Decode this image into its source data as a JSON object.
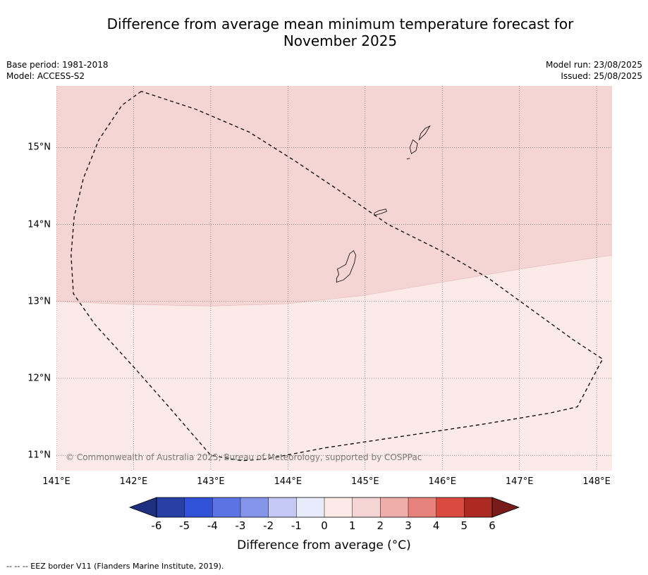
{
  "title_line1": "Difference from average mean minimum temperature forecast for",
  "title_line2": "November 2025",
  "meta_left": {
    "base_period": "Base period: 1981-2018",
    "model": "Model: ACCESS-S2"
  },
  "meta_right": {
    "model_run": "Model run: 23/08/2025",
    "issued": "Issued: 25/08/2025"
  },
  "map": {
    "lon_range": [
      141.0,
      148.2
    ],
    "lat_range": [
      10.8,
      15.8
    ],
    "lat_labels": [
      {
        "value": 15,
        "text": "15°N"
      },
      {
        "value": 14,
        "text": "14°N"
      },
      {
        "value": 13,
        "text": "13°N"
      },
      {
        "value": 12,
        "text": "12°N"
      },
      {
        "value": 11,
        "text": "11°N"
      }
    ],
    "lon_labels": [
      {
        "value": 141,
        "text": "141°E"
      },
      {
        "value": 142,
        "text": "142°E"
      },
      {
        "value": 143,
        "text": "143°E"
      },
      {
        "value": 144,
        "text": "144°E"
      },
      {
        "value": 145,
        "text": "145°E"
      },
      {
        "value": 146,
        "text": "146°E"
      },
      {
        "value": 147,
        "text": "147°E"
      },
      {
        "value": 148,
        "text": "148°E"
      }
    ],
    "anomaly_zones": [
      {
        "range": "1 to 2",
        "color": "#f5d5d3"
      },
      {
        "range": "0 to 1",
        "color": "#fbeae8"
      }
    ],
    "eez_border": [
      [
        142.1,
        15.73
      ],
      [
        141.85,
        15.55
      ],
      [
        141.55,
        15.1
      ],
      [
        141.35,
        14.6
      ],
      [
        141.23,
        14.1
      ],
      [
        141.19,
        13.6
      ],
      [
        141.22,
        13.1
      ],
      [
        141.5,
        12.7
      ],
      [
        142.0,
        12.15
      ],
      [
        142.5,
        11.58
      ],
      [
        143.0,
        11.0
      ],
      [
        143.4,
        10.93
      ],
      [
        143.7,
        10.95
      ],
      [
        144.5,
        11.1
      ],
      [
        145.5,
        11.25
      ],
      [
        146.5,
        11.4
      ],
      [
        147.4,
        11.55
      ],
      [
        147.75,
        11.63
      ],
      [
        148.05,
        12.2
      ],
      [
        148.08,
        12.25
      ],
      [
        147.7,
        12.5
      ],
      [
        146.6,
        13.3
      ],
      [
        146.0,
        13.65
      ],
      [
        145.3,
        14.0
      ],
      [
        144.65,
        14.45
      ],
      [
        144.1,
        14.82
      ],
      [
        143.5,
        15.2
      ],
      [
        142.8,
        15.5
      ],
      [
        142.1,
        15.73
      ]
    ],
    "islands": [
      [
        [
          144.63,
          13.25
        ],
        [
          144.72,
          13.28
        ],
        [
          144.8,
          13.35
        ],
        [
          144.86,
          13.5
        ],
        [
          144.88,
          13.6
        ],
        [
          144.85,
          13.66
        ],
        [
          144.8,
          13.62
        ],
        [
          144.75,
          13.48
        ],
        [
          144.68,
          13.44
        ],
        [
          144.64,
          13.42
        ],
        [
          144.66,
          13.35
        ],
        [
          144.63,
          13.3
        ],
        [
          144.63,
          13.25
        ]
      ],
      [
        [
          145.12,
          14.12
        ],
        [
          145.2,
          14.14
        ],
        [
          145.28,
          14.17
        ],
        [
          145.27,
          14.2
        ],
        [
          145.18,
          14.18
        ],
        [
          145.12,
          14.15
        ],
        [
          145.12,
          14.12
        ]
      ],
      [
        [
          145.6,
          14.92
        ],
        [
          145.66,
          14.96
        ],
        [
          145.68,
          15.05
        ],
        [
          145.62,
          15.1
        ],
        [
          145.58,
          15.0
        ],
        [
          145.6,
          14.92
        ]
      ],
      [
        [
          145.7,
          15.1
        ],
        [
          145.78,
          15.18
        ],
        [
          145.84,
          15.28
        ],
        [
          145.78,
          15.25
        ],
        [
          145.72,
          15.18
        ],
        [
          145.7,
          15.1
        ]
      ],
      [
        [
          145.54,
          14.85
        ],
        [
          145.58,
          14.86
        ]
      ]
    ],
    "copyright": "© Commonwealth of Australia 2025, Bureau of Meteorology, supported by COSPPac"
  },
  "colorbar": {
    "ticks": [
      "-6",
      "-5",
      "-4",
      "-3",
      "-2",
      "-1",
      "0",
      "1",
      "2",
      "3",
      "4",
      "5",
      "6"
    ],
    "under_color": "#1f2f7f",
    "over_color": "#7a1a1a",
    "colors": [
      "#283fa8",
      "#3152d8",
      "#5c73e4",
      "#8595ea",
      "#c3c9f3",
      "#e8ebfb",
      "#fbeae8",
      "#f5d5d3",
      "#efaea9",
      "#e8827d",
      "#da4a3f",
      "#ad2a22"
    ],
    "label": "Difference from average ($^\\circ$C)",
    "label_display": "Difference from average (°C)"
  },
  "footnote": "--  --  -- EEZ border V11 (Flanders Marine Institute, 2019)."
}
